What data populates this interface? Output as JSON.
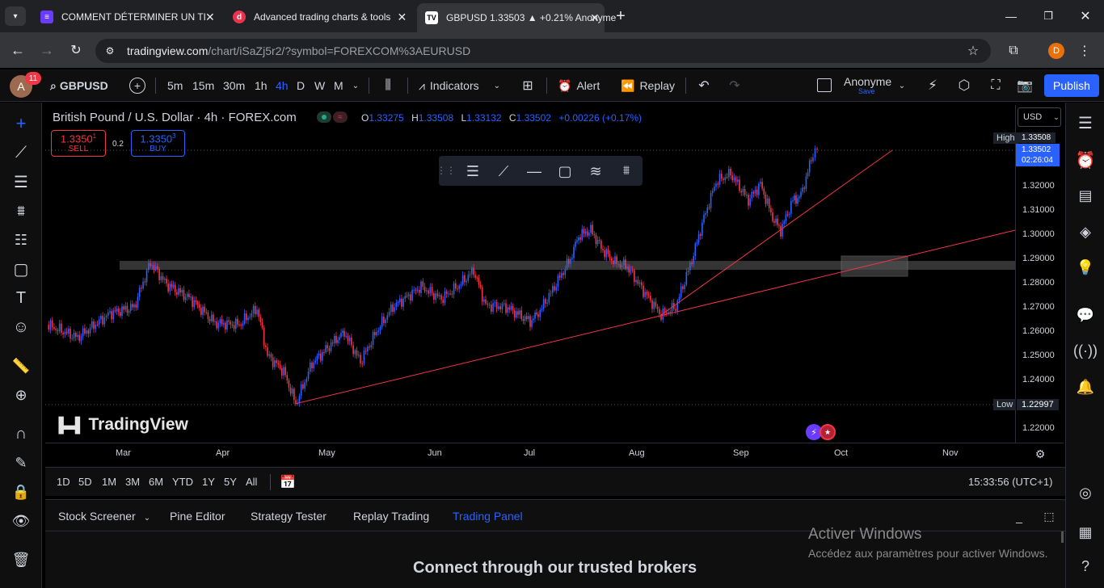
{
  "browser": {
    "tabs": [
      {
        "title": "COMMENT DÉTERMINER UN TI",
        "favicon": "purple-logo-icon",
        "color": "#6a3cff"
      },
      {
        "title": "Advanced trading charts & tools",
        "favicon": "red-d-icon",
        "color": "#e8344e"
      },
      {
        "title": "GBPUSD 1.33503 ▲ +0.21% Anonyme",
        "favicon": "tradingview-icon",
        "color": "#ffffff"
      }
    ],
    "url_domain": "tradingview.com",
    "url_path": "/chart/iSaZj5r2/?symbol=FOREXCOM%3AEURUSD",
    "profile_letter": "D"
  },
  "toolbar": {
    "avatar_letter": "A",
    "notif_count": "11",
    "symbol": "GBPUSD",
    "intervals": [
      "5m",
      "15m",
      "30m",
      "1h",
      "4h",
      "D",
      "W",
      "M"
    ],
    "active_interval": "4h",
    "indicators_label": "Indicators",
    "alert_label": "Alert",
    "replay_label": "Replay",
    "layout_name": "Anonyme",
    "layout_save": "Save",
    "publish_label": "Publish"
  },
  "legend": {
    "title": "British Pound / U.S. Dollar · 4h · FOREX.com",
    "o_label": "O",
    "o": "1.33275",
    "h_label": "H",
    "h": "1.33508",
    "l_label": "L",
    "l": "1.33132",
    "c_label": "C",
    "c": "1.33502",
    "change": "+0.00226 (+0.17%)",
    "sell_price": "1.3350",
    "sell_sup": "1",
    "sell_label": "SELL",
    "spread": "0.2",
    "buy_price": "1.3350",
    "buy_sup": "3",
    "buy_label": "BUY"
  },
  "price_scale": {
    "currency": "USD",
    "labels": [
      "1.32000",
      "1.31000",
      "1.30000",
      "1.29000",
      "1.28000",
      "1.27000",
      "1.26000",
      "1.25000",
      "1.24000",
      "1.22000"
    ],
    "high_label": "High",
    "high_value": "1.33508",
    "last_value": "1.33502",
    "countdown": "02:26:04",
    "low_label": "Low",
    "low_value": "1.22997"
  },
  "time_scale": {
    "labels": [
      "Mar",
      "Apr",
      "May",
      "Jun",
      "Jul",
      "Aug",
      "Sep",
      "Oct",
      "Nov"
    ]
  },
  "watermark": "TradingView",
  "range_bar": {
    "ranges": [
      "1D",
      "5D",
      "1M",
      "3M",
      "6M",
      "YTD",
      "1Y",
      "5Y",
      "All"
    ],
    "clock": "15:33:56 (UTC+1)"
  },
  "bottom_panel": {
    "tabs": [
      "Stock Screener",
      "Pine Editor",
      "Strategy Tester",
      "Replay Trading",
      "Trading Panel"
    ],
    "active_tab": "Trading Panel",
    "heading": "Connect through our trusted brokers"
  },
  "windows_watermark": {
    "title": "Activer Windows",
    "subtitle": "Accédez aux paramètres pour activer Windows."
  },
  "colors": {
    "accent": "#2962ff",
    "up": "#2962ff",
    "down": "#f23645",
    "trend": "#f23645"
  }
}
